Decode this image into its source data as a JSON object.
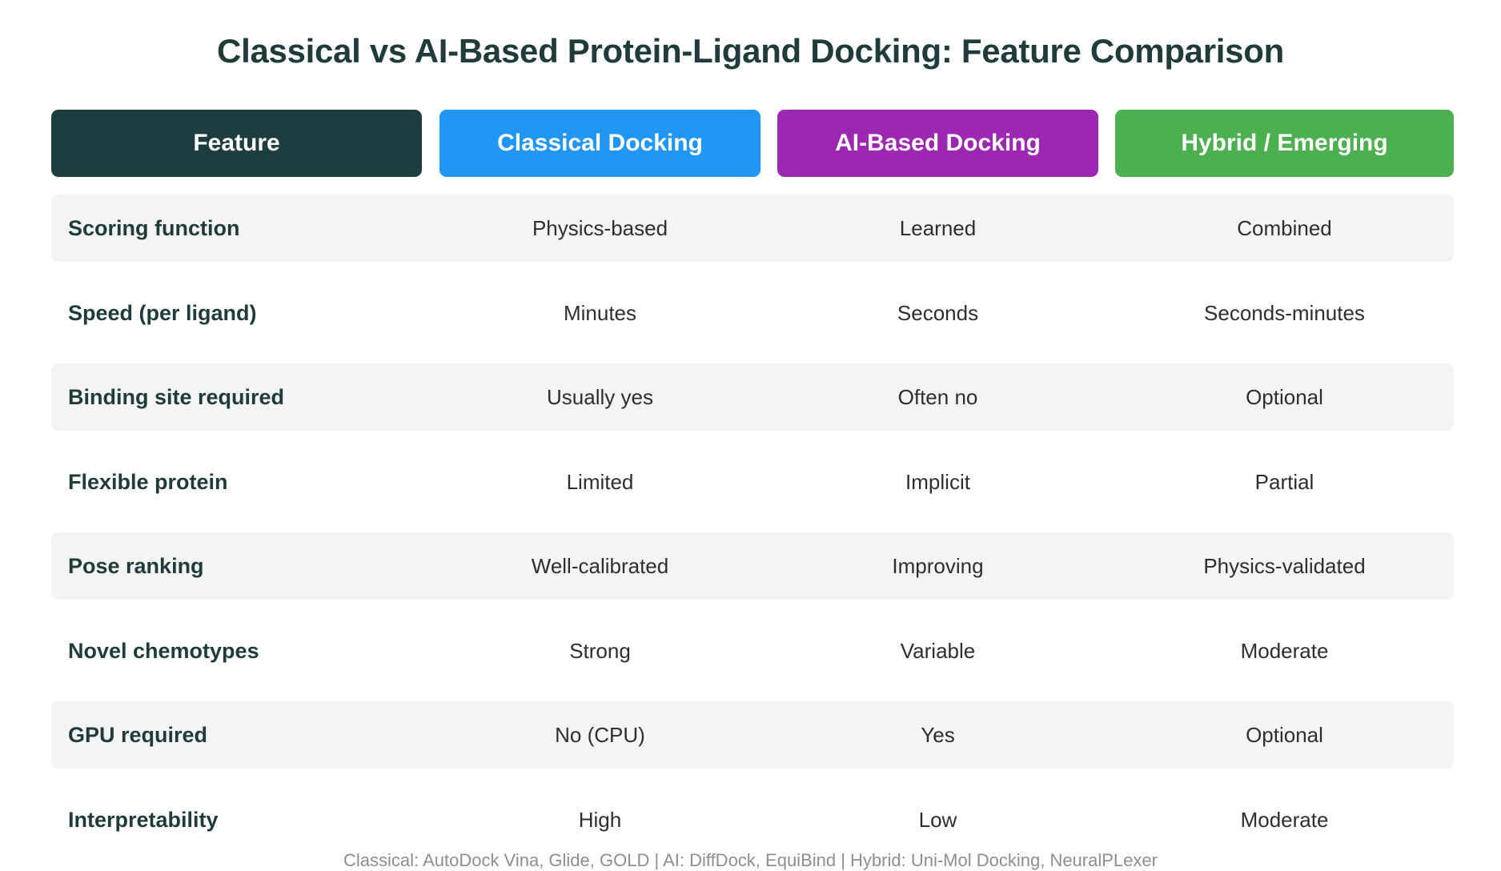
{
  "title": "Classical vs AI-Based Protein-Ligand Docking: Feature Comparison",
  "columns": [
    {
      "label": "Feature",
      "color": "#1e3d3f"
    },
    {
      "label": "Classical Docking",
      "color": "#2196f3"
    },
    {
      "label": "AI-Based Docking",
      "color": "#9c27b0"
    },
    {
      "label": "Hybrid / Emerging",
      "color": "#4caf50"
    }
  ],
  "rows": [
    {
      "feature": "Scoring function",
      "classical": "Physics-based",
      "ai": "Learned",
      "hybrid": "Combined"
    },
    {
      "feature": "Speed (per ligand)",
      "classical": "Minutes",
      "ai": "Seconds",
      "hybrid": "Seconds-minutes"
    },
    {
      "feature": "Binding site required",
      "classical": "Usually yes",
      "ai": "Often no",
      "hybrid": "Optional"
    },
    {
      "feature": "Flexible protein",
      "classical": "Limited",
      "ai": "Implicit",
      "hybrid": "Partial"
    },
    {
      "feature": "Pose ranking",
      "classical": "Well-calibrated",
      "ai": "Improving",
      "hybrid": "Physics-validated"
    },
    {
      "feature": "Novel chemotypes",
      "classical": "Strong",
      "ai": "Variable",
      "hybrid": "Moderate"
    },
    {
      "feature": "GPU required",
      "classical": "No (CPU)",
      "ai": "Yes",
      "hybrid": "Optional"
    },
    {
      "feature": "Interpretability",
      "classical": "High",
      "ai": "Low",
      "hybrid": "Moderate"
    }
  ],
  "footer": "Classical: AutoDock Vina, Glide, GOLD | AI: DiffDock, EquiBind | Hybrid: Uni-Mol Docking, NeuralPLexer"
}
